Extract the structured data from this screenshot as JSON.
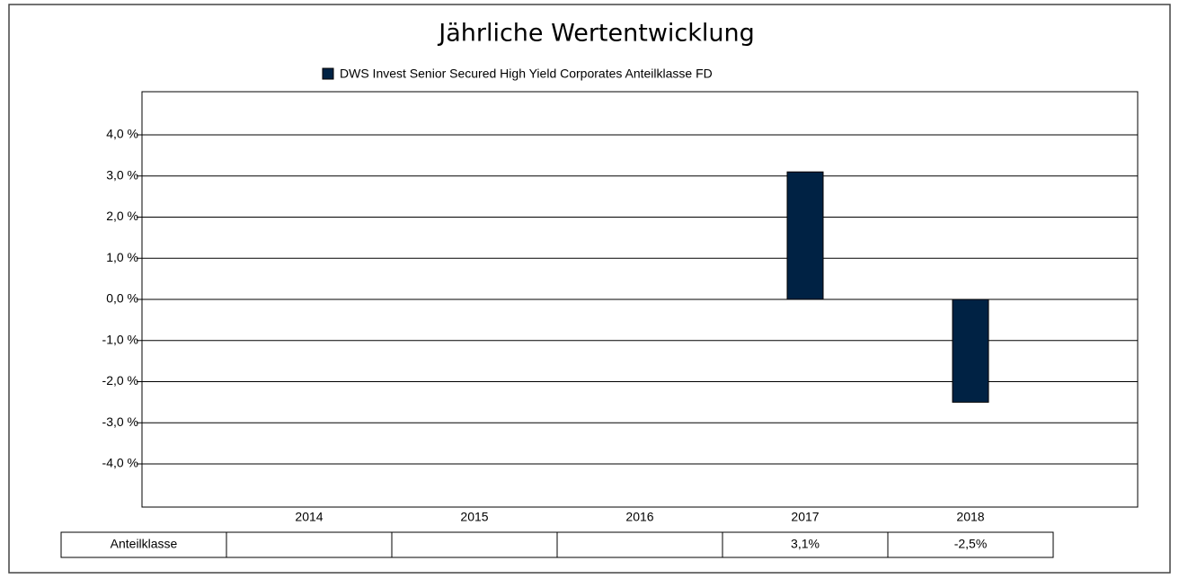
{
  "chart_data": {
    "type": "bar",
    "title": "Jährliche Wertentwicklung",
    "categories": [
      "2014",
      "2015",
      "2016",
      "2017",
      "2018"
    ],
    "series": [
      {
        "name": "DWS Invest Senior Secured High Yield Corporates Anteilklasse FD",
        "color": "#002244",
        "values": [
          null,
          null,
          null,
          3.1,
          -2.5
        ],
        "value_labels": [
          null,
          null,
          null,
          "3,1%",
          "-2,5%"
        ]
      }
    ],
    "table_row_label": "Anteilklasse",
    "ylim": [
      -5.05,
      5.05
    ],
    "yticks": [
      {
        "value": 4,
        "label": "4,0 %"
      },
      {
        "value": 3,
        "label": "3,0 %"
      },
      {
        "value": 2,
        "label": "2,0 %"
      },
      {
        "value": 1,
        "label": "1,0 %"
      },
      {
        "value": 0,
        "label": "0,0 %"
      },
      {
        "value": -1,
        "label": "-1,0 %"
      },
      {
        "value": -2,
        "label": "-2,0 %"
      },
      {
        "value": -3,
        "label": "-3,0 %"
      },
      {
        "value": -4,
        "label": "-4,0 %"
      }
    ],
    "grid": true,
    "legend": "top"
  }
}
